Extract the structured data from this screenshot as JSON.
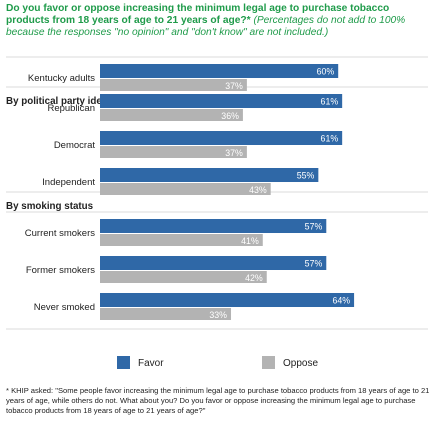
{
  "title": {
    "question": "Do you favor or oppose increasing the minimum legal age to purchase tobacco products from 18 years of age to 21 years of age?*",
    "note": "(Percentages do not add to 100% because the responses \"no opinion\" and \"don't know\" are not included.)"
  },
  "footnote": "* KHIP asked: \"Some people favor increasing the minimum legal age to purchase tobacco products from 18 years of age to 21 years of age, while others do not. What about you? Do you favor or oppose increasing the minimum legal age to purchase tobacco products from 18 years of age to 21 years of age?\"",
  "colors": {
    "favor": "#2f68a7",
    "oppose": "#b3b3b3",
    "title": "#1f9b4a",
    "divider": "#cfcfcf"
  },
  "chart_data": {
    "type": "bar",
    "orientation": "horizontal",
    "xlim": [
      0,
      70
    ],
    "grid": false,
    "legend_position": "bottom",
    "series": [
      {
        "name": "Favor"
      },
      {
        "name": "Oppose"
      }
    ],
    "groups": [
      {
        "heading": "",
        "rows": [
          {
            "label": "Kentucky adults",
            "favor": 60,
            "oppose": 37,
            "favor_label": "60%",
            "oppose_label": "37%"
          }
        ]
      },
      {
        "heading": "By political party identification",
        "rows": [
          {
            "label": "Republican",
            "favor": 61,
            "oppose": 36,
            "favor_label": "61%",
            "oppose_label": "36%"
          },
          {
            "label": "Democrat",
            "favor": 61,
            "oppose": 37,
            "favor_label": "61%",
            "oppose_label": "37%"
          },
          {
            "label": "Independent",
            "favor": 55,
            "oppose": 43,
            "favor_label": "55%",
            "oppose_label": "43%"
          }
        ]
      },
      {
        "heading": "By smoking status",
        "rows": [
          {
            "label": "Current smokers",
            "favor": 57,
            "oppose": 41,
            "favor_label": "57%",
            "oppose_label": "41%"
          },
          {
            "label": "Former smokers",
            "favor": 57,
            "oppose": 42,
            "favor_label": "57%",
            "oppose_label": "42%"
          },
          {
            "label": "Never smoked",
            "favor": 64,
            "oppose": 33,
            "favor_label": "64%",
            "oppose_label": "33%"
          }
        ]
      }
    ]
  }
}
